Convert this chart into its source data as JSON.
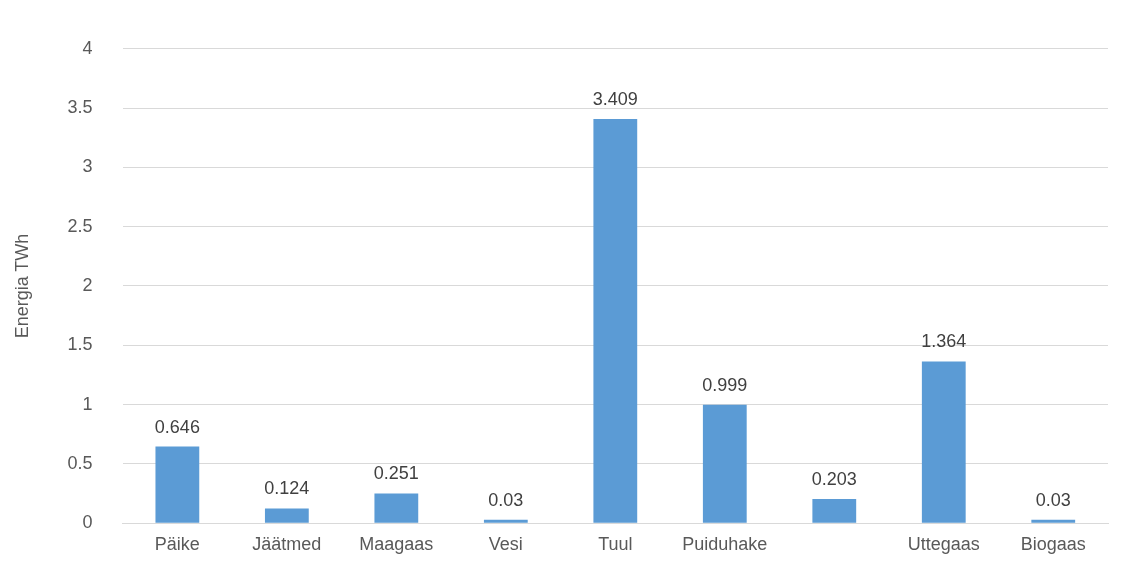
{
  "chart_data": {
    "type": "bar",
    "ylabel": "Energia TWh",
    "categories": [
      "Päike",
      "Jäätmed",
      "Maagaas",
      "Vesi",
      "Tuul",
      "Puiduhake",
      null,
      "Uttegaas",
      "Biogaas"
    ],
    "values": [
      0.646,
      0.124,
      0.251,
      0.03,
      3.409,
      0.999,
      0.203,
      1.364,
      0.03
    ],
    "color": "#5b9bd5",
    "ylim": [
      0,
      4
    ],
    "yticks": [
      0,
      0.5,
      1,
      1.5,
      2,
      2.5,
      3,
      3.5,
      4
    ],
    "grid": "y",
    "data_labels": true,
    "legend": false
  }
}
